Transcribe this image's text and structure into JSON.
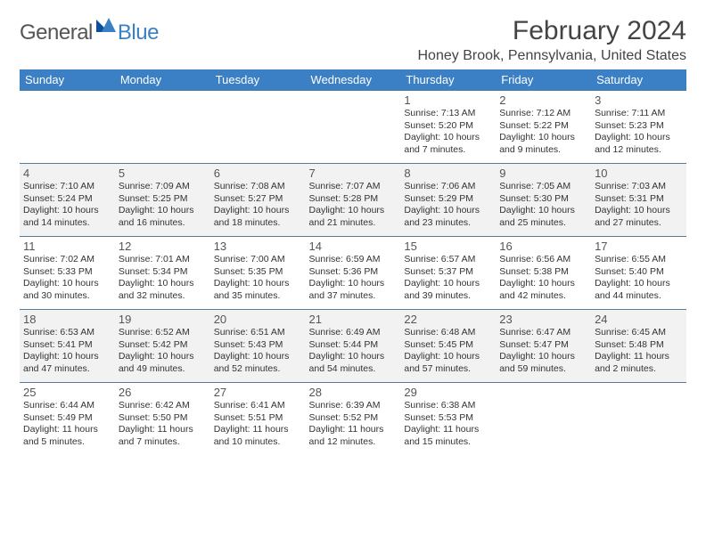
{
  "logo": {
    "general": "General",
    "blue": "Blue"
  },
  "title": "February 2024",
  "location": "Honey Brook, Pennsylvania, United States",
  "colors": {
    "header_bg": "#3b7fc4",
    "header_fg": "#ffffff",
    "row_border": "#5a7a9a",
    "alt_row_bg": "#f2f2f2",
    "logo_gray": "#555555",
    "logo_blue": "#3b7fc4",
    "text": "#333333"
  },
  "typography": {
    "title_fontsize": 30,
    "location_fontsize": 16,
    "header_fontsize": 13,
    "daynum_fontsize": 13,
    "info_fontsize": 10.5
  },
  "day_headers": [
    "Sunday",
    "Monday",
    "Tuesday",
    "Wednesday",
    "Thursday",
    "Friday",
    "Saturday"
  ],
  "first_weekday_index": 4,
  "days": [
    {
      "n": 1,
      "sunrise": "7:13 AM",
      "sunset": "5:20 PM",
      "daylight": "10 hours and 7 minutes."
    },
    {
      "n": 2,
      "sunrise": "7:12 AM",
      "sunset": "5:22 PM",
      "daylight": "10 hours and 9 minutes."
    },
    {
      "n": 3,
      "sunrise": "7:11 AM",
      "sunset": "5:23 PM",
      "daylight": "10 hours and 12 minutes."
    },
    {
      "n": 4,
      "sunrise": "7:10 AM",
      "sunset": "5:24 PM",
      "daylight": "10 hours and 14 minutes."
    },
    {
      "n": 5,
      "sunrise": "7:09 AM",
      "sunset": "5:25 PM",
      "daylight": "10 hours and 16 minutes."
    },
    {
      "n": 6,
      "sunrise": "7:08 AM",
      "sunset": "5:27 PM",
      "daylight": "10 hours and 18 minutes."
    },
    {
      "n": 7,
      "sunrise": "7:07 AM",
      "sunset": "5:28 PM",
      "daylight": "10 hours and 21 minutes."
    },
    {
      "n": 8,
      "sunrise": "7:06 AM",
      "sunset": "5:29 PM",
      "daylight": "10 hours and 23 minutes."
    },
    {
      "n": 9,
      "sunrise": "7:05 AM",
      "sunset": "5:30 PM",
      "daylight": "10 hours and 25 minutes."
    },
    {
      "n": 10,
      "sunrise": "7:03 AM",
      "sunset": "5:31 PM",
      "daylight": "10 hours and 27 minutes."
    },
    {
      "n": 11,
      "sunrise": "7:02 AM",
      "sunset": "5:33 PM",
      "daylight": "10 hours and 30 minutes."
    },
    {
      "n": 12,
      "sunrise": "7:01 AM",
      "sunset": "5:34 PM",
      "daylight": "10 hours and 32 minutes."
    },
    {
      "n": 13,
      "sunrise": "7:00 AM",
      "sunset": "5:35 PM",
      "daylight": "10 hours and 35 minutes."
    },
    {
      "n": 14,
      "sunrise": "6:59 AM",
      "sunset": "5:36 PM",
      "daylight": "10 hours and 37 minutes."
    },
    {
      "n": 15,
      "sunrise": "6:57 AM",
      "sunset": "5:37 PM",
      "daylight": "10 hours and 39 minutes."
    },
    {
      "n": 16,
      "sunrise": "6:56 AM",
      "sunset": "5:38 PM",
      "daylight": "10 hours and 42 minutes."
    },
    {
      "n": 17,
      "sunrise": "6:55 AM",
      "sunset": "5:40 PM",
      "daylight": "10 hours and 44 minutes."
    },
    {
      "n": 18,
      "sunrise": "6:53 AM",
      "sunset": "5:41 PM",
      "daylight": "10 hours and 47 minutes."
    },
    {
      "n": 19,
      "sunrise": "6:52 AM",
      "sunset": "5:42 PM",
      "daylight": "10 hours and 49 minutes."
    },
    {
      "n": 20,
      "sunrise": "6:51 AM",
      "sunset": "5:43 PM",
      "daylight": "10 hours and 52 minutes."
    },
    {
      "n": 21,
      "sunrise": "6:49 AM",
      "sunset": "5:44 PM",
      "daylight": "10 hours and 54 minutes."
    },
    {
      "n": 22,
      "sunrise": "6:48 AM",
      "sunset": "5:45 PM",
      "daylight": "10 hours and 57 minutes."
    },
    {
      "n": 23,
      "sunrise": "6:47 AM",
      "sunset": "5:47 PM",
      "daylight": "10 hours and 59 minutes."
    },
    {
      "n": 24,
      "sunrise": "6:45 AM",
      "sunset": "5:48 PM",
      "daylight": "11 hours and 2 minutes."
    },
    {
      "n": 25,
      "sunrise": "6:44 AM",
      "sunset": "5:49 PM",
      "daylight": "11 hours and 5 minutes."
    },
    {
      "n": 26,
      "sunrise": "6:42 AM",
      "sunset": "5:50 PM",
      "daylight": "11 hours and 7 minutes."
    },
    {
      "n": 27,
      "sunrise": "6:41 AM",
      "sunset": "5:51 PM",
      "daylight": "11 hours and 10 minutes."
    },
    {
      "n": 28,
      "sunrise": "6:39 AM",
      "sunset": "5:52 PM",
      "daylight": "11 hours and 12 minutes."
    },
    {
      "n": 29,
      "sunrise": "6:38 AM",
      "sunset": "5:53 PM",
      "daylight": "11 hours and 15 minutes."
    }
  ],
  "labels": {
    "sunrise_prefix": "Sunrise: ",
    "sunset_prefix": "Sunset: ",
    "daylight_prefix": "Daylight: "
  }
}
